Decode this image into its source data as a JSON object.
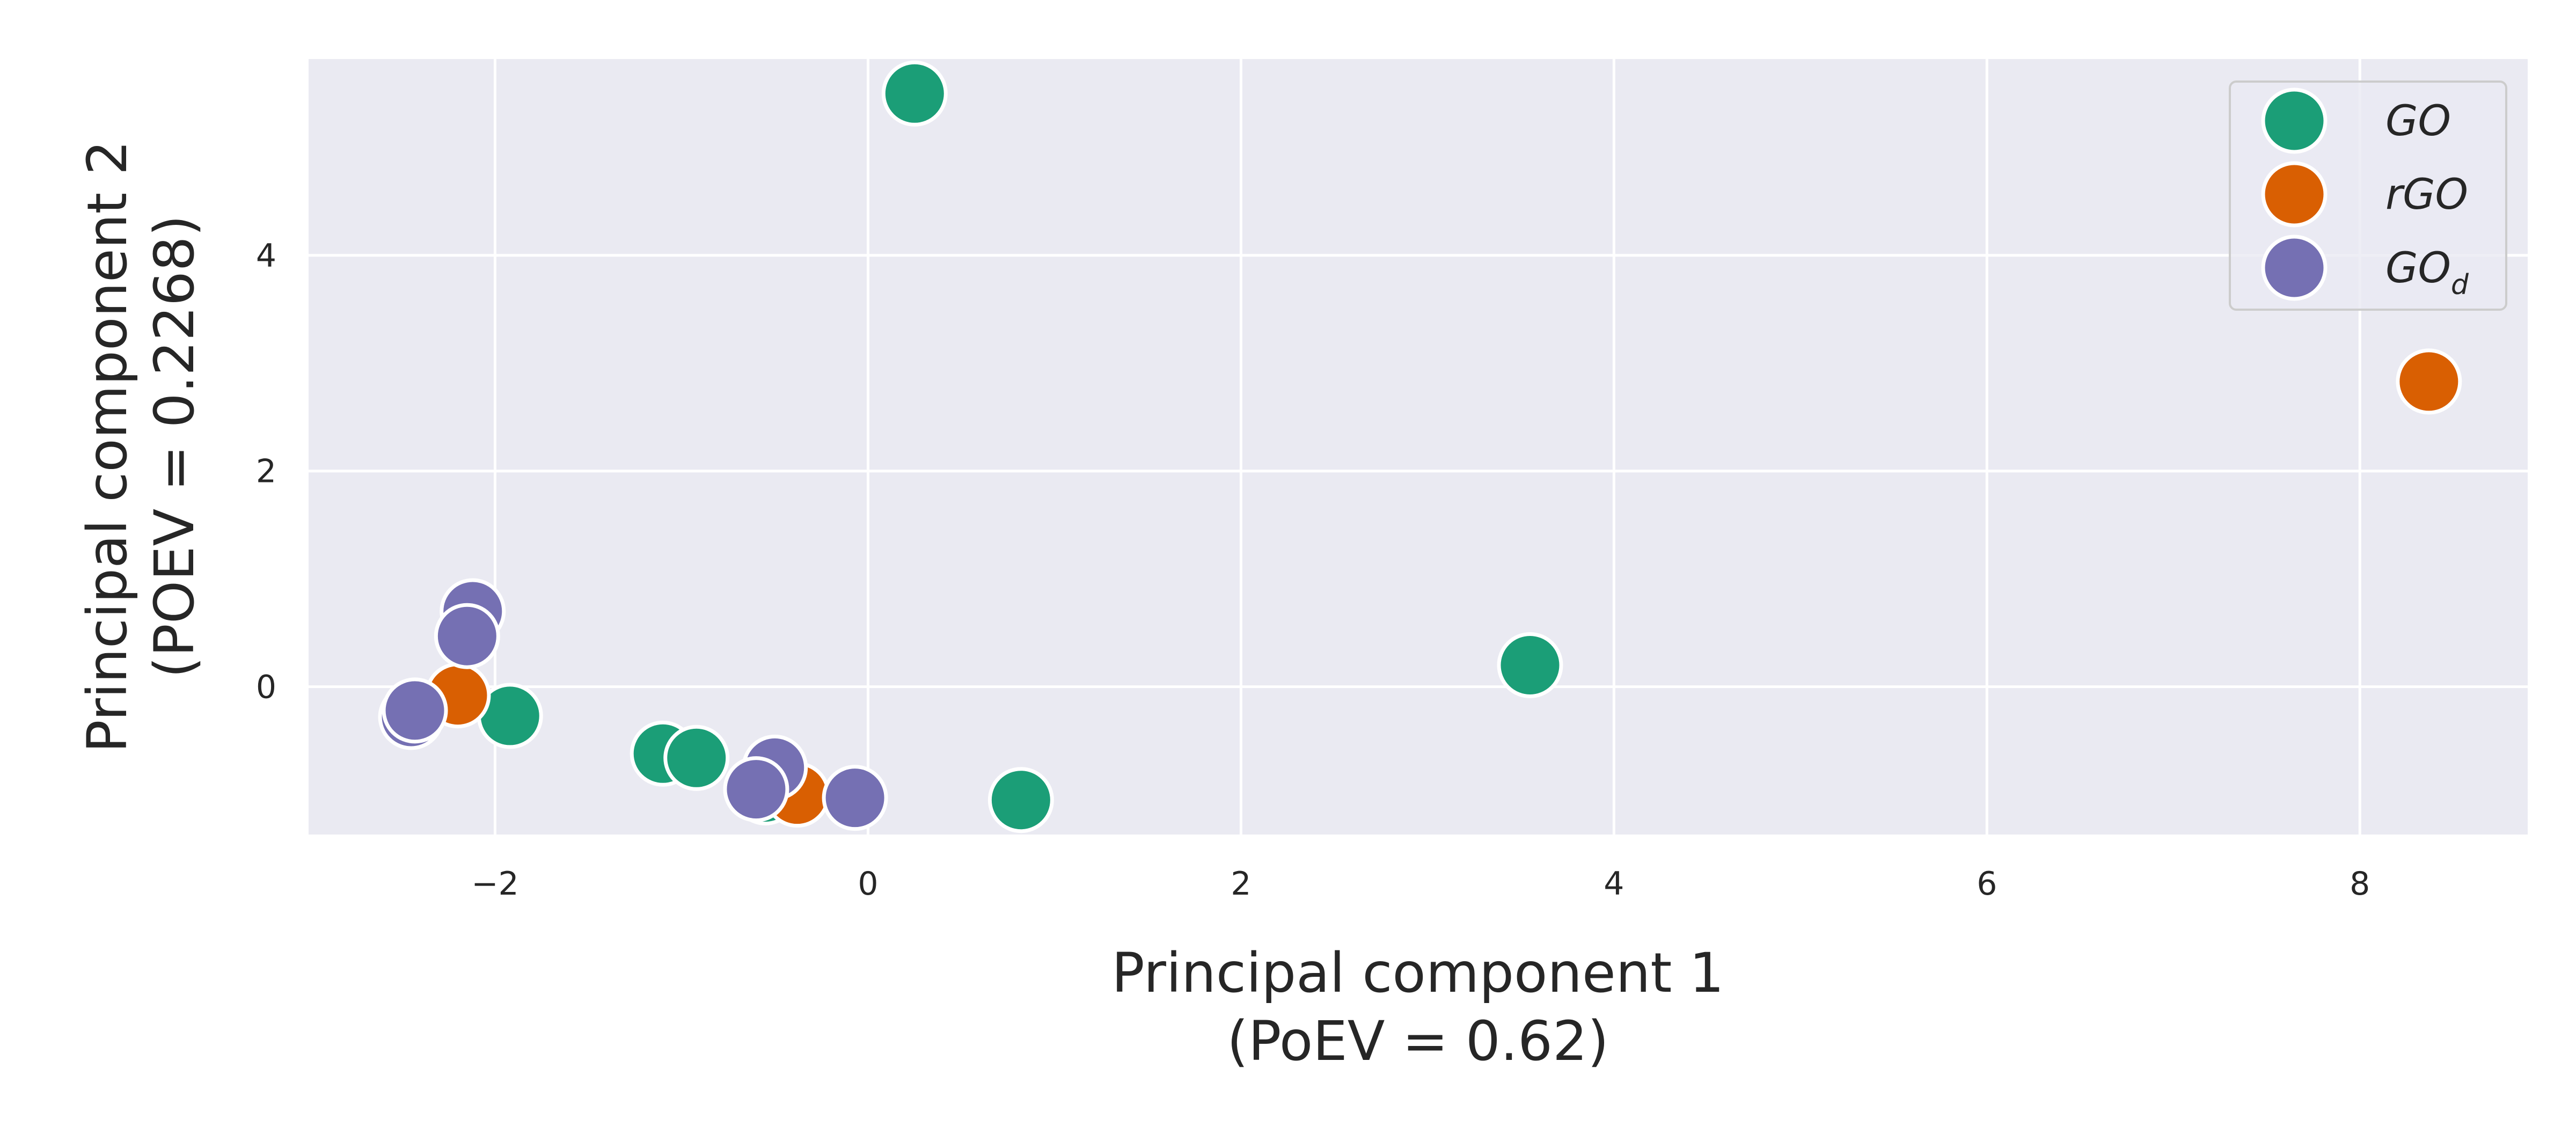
{
  "chart_data": {
    "type": "scatter",
    "title": "",
    "xlabel": [
      "Principal component 1",
      "(PoEV = 0.62)"
    ],
    "ylabel": [
      "Principal component 2",
      "(POEV = 0.2268)"
    ],
    "xlim": [
      -3.0,
      8.9
    ],
    "ylim": [
      -1.37,
      5.82
    ],
    "xticks": [
      -2,
      0,
      2,
      4,
      6,
      8
    ],
    "xtick_labels": [
      "−2",
      "0",
      "2",
      "4",
      "6",
      "8"
    ],
    "yticks": [
      0,
      2,
      4
    ],
    "ytick_labels": [
      "0",
      "2",
      "4"
    ],
    "grid": true,
    "legend_position": "top-right",
    "series": [
      {
        "name": "GO",
        "label_main": "GO",
        "label_sub": "",
        "color": "#1b9e77",
        "points": [
          {
            "x": 0.25,
            "y": 5.5
          },
          {
            "x": 3.55,
            "y": 0.2
          },
          {
            "x": 0.82,
            "y": -1.05
          },
          {
            "x": -1.92,
            "y": -0.27
          },
          {
            "x": -1.1,
            "y": -0.62
          },
          {
            "x": -0.92,
            "y": -0.66
          },
          {
            "x": -0.55,
            "y": -0.98
          }
        ]
      },
      {
        "name": "rGO",
        "label_main": "rGO",
        "label_sub": "",
        "color": "#d95f02",
        "points": [
          {
            "x": 8.37,
            "y": 2.83
          },
          {
            "x": -2.2,
            "y": -0.08
          },
          {
            "x": -0.38,
            "y": -1.0
          }
        ]
      },
      {
        "name": "GO_d",
        "label_main": "GO",
        "label_sub": "d",
        "color": "#7570b3",
        "points": [
          {
            "x": -2.12,
            "y": 0.7
          },
          {
            "x": -2.15,
            "y": 0.47
          },
          {
            "x": -2.45,
            "y": -0.28
          },
          {
            "x": -2.43,
            "y": -0.22
          },
          {
            "x": -0.5,
            "y": -0.75
          },
          {
            "x": -0.6,
            "y": -0.95
          },
          {
            "x": -0.07,
            "y": -1.03
          }
        ]
      }
    ]
  }
}
